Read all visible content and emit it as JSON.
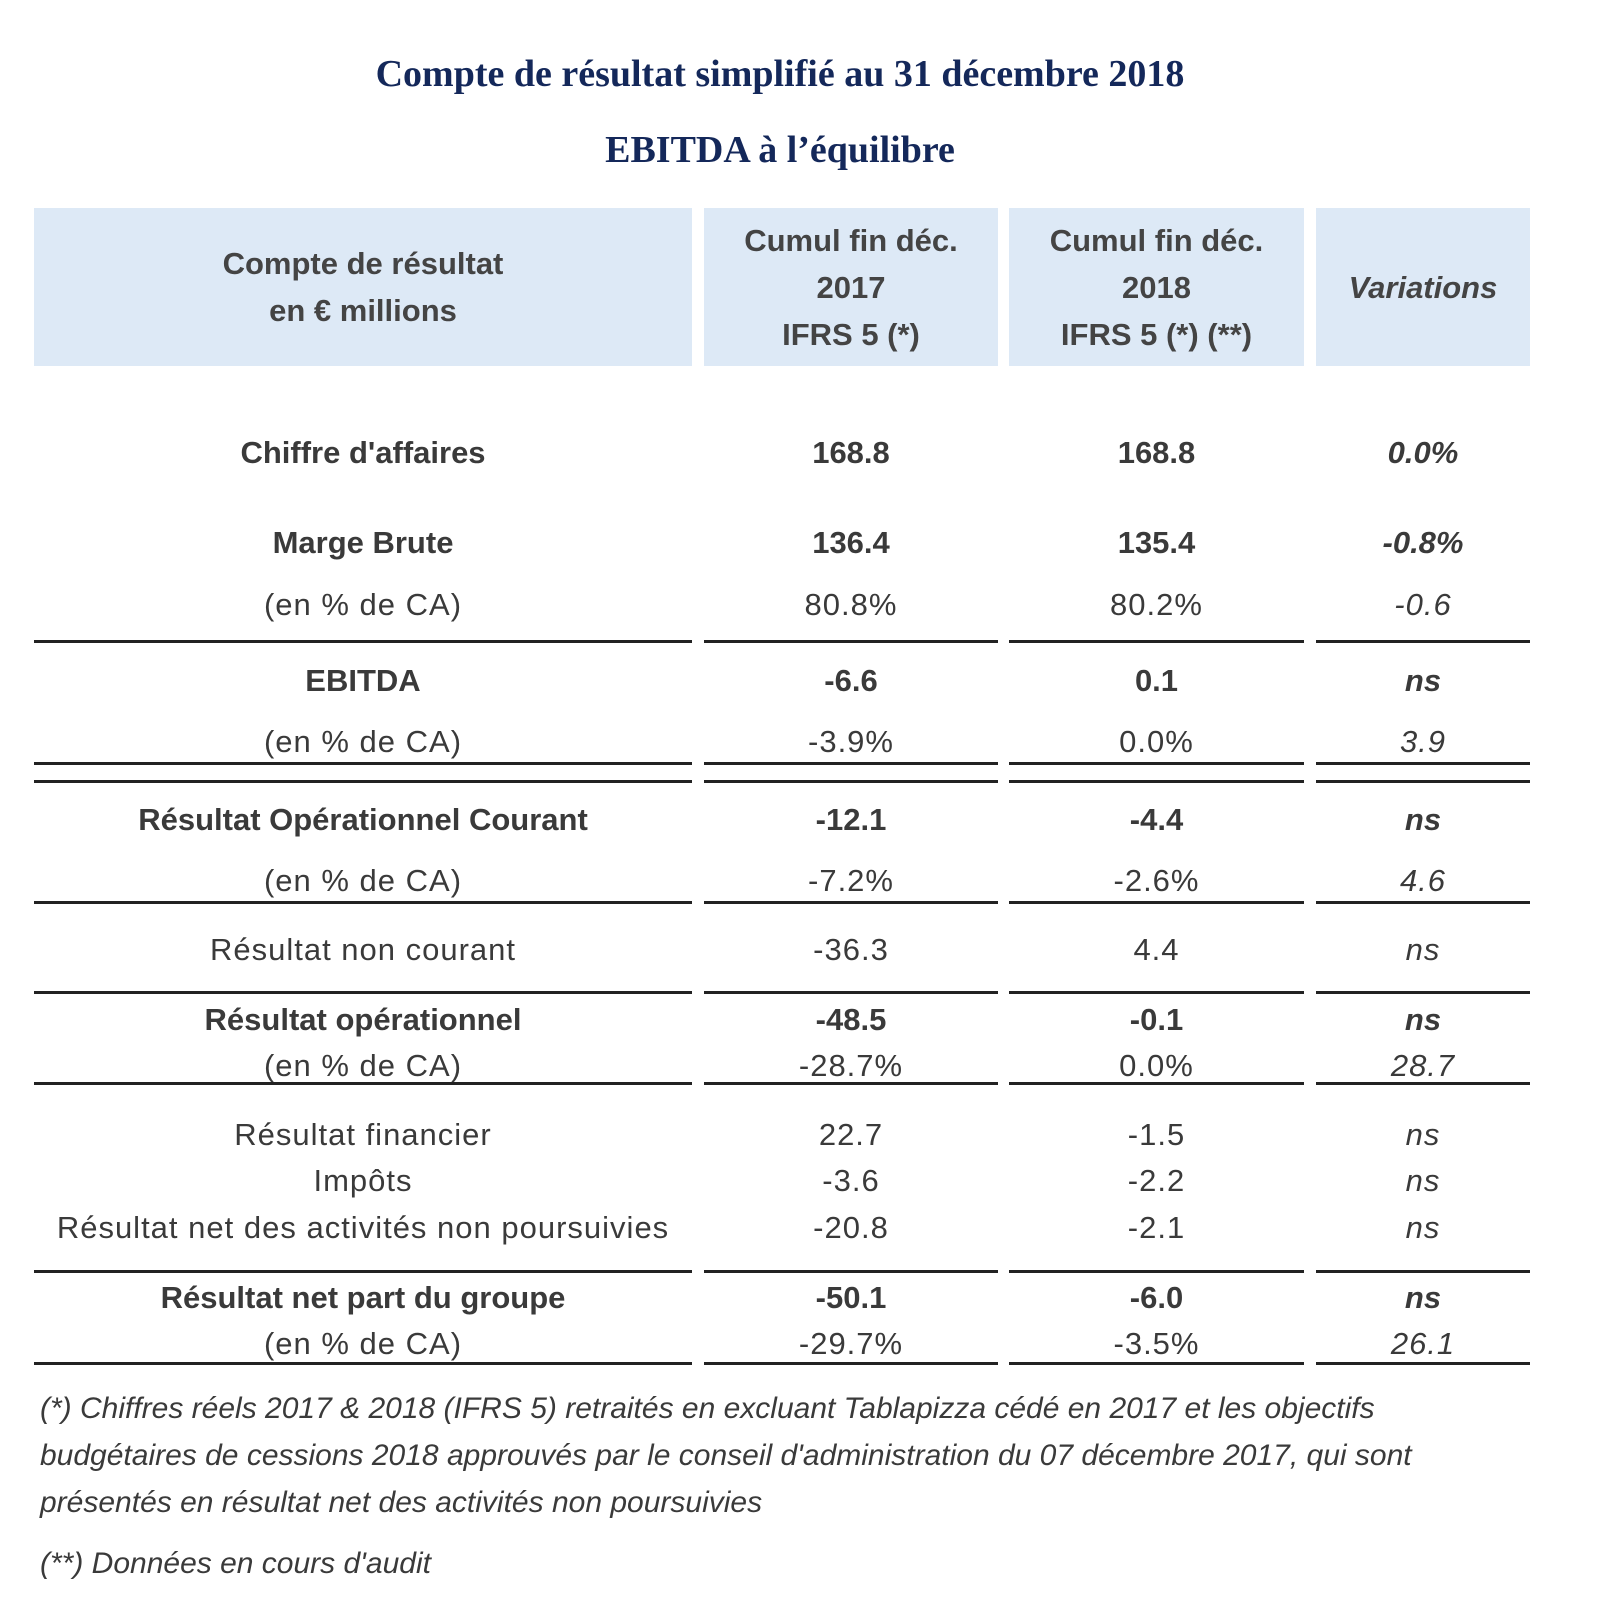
{
  "title": "Compte de résultat simplifié au 31 décembre 2018",
  "subtitle": "EBITDA à l’équilibre",
  "header": {
    "col0": [
      "Compte de résultat",
      "en € millions"
    ],
    "col1": [
      "Cumul fin déc.",
      "2017",
      "IFRS 5 (*)"
    ],
    "col2": [
      "Cumul fin déc.",
      "2018",
      "IFRS 5 (*) (**)"
    ],
    "col3": "Variations"
  },
  "rows": [
    {
      "label": "Chiffre d'affaires",
      "v2017": "168.8",
      "v2018": "168.8",
      "var": "0.0%"
    },
    {
      "label": "Marge Brute",
      "v2017": "136.4",
      "v2018": "135.4",
      "var": "-0.8%"
    },
    {
      "label": "(en % de CA)",
      "v2017": "80.8%",
      "v2018": "80.2%",
      "var": "-0.6"
    },
    {
      "label": "EBITDA",
      "v2017": "-6.6",
      "v2018": "0.1",
      "var": "ns"
    },
    {
      "label": "(en % de CA)",
      "v2017": "-3.9%",
      "v2018": "0.0%",
      "var": "3.9"
    },
    {
      "label": "Résultat Opérationnel Courant",
      "v2017": "-12.1",
      "v2018": "-4.4",
      "var": "ns"
    },
    {
      "label": "(en % de CA)",
      "v2017": "-7.2%",
      "v2018": "-2.6%",
      "var": "4.6"
    },
    {
      "label": "Résultat non courant",
      "v2017": "-36.3",
      "v2018": "4.4",
      "var": "ns"
    },
    {
      "label": "Résultat opérationnel",
      "v2017": "-48.5",
      "v2018": "-0.1",
      "var": "ns"
    },
    {
      "label": "(en % de CA)",
      "v2017": "-28.7%",
      "v2018": "0.0%",
      "var": "28.7"
    },
    {
      "label": "Résultat financier",
      "v2017": "22.7",
      "v2018": "-1.5",
      "var": "ns"
    },
    {
      "label": "Impôts",
      "v2017": "-3.6",
      "v2018": "-2.2",
      "var": "ns"
    },
    {
      "label": "Résultat net des activités non poursuivies",
      "v2017": "-20.8",
      "v2018": "-2.1",
      "var": "ns"
    },
    {
      "label": "Résultat net part du groupe",
      "v2017": "-50.1",
      "v2018": "-6.0",
      "var": "ns"
    },
    {
      "label": "(en % de CA)",
      "v2017": "-29.7%",
      "v2018": "-3.5%",
      "var": "26.1"
    }
  ],
  "notes": {
    "note1": "(*) Chiffres réels 2017 & 2018 (IFRS 5) retraités en excluant Tablapizza cédé en 2017 et les objectifs budgétaires de cessions 2018 approuvés par le conseil d'administration du 07 décembre 2017, qui sont présentés en résultat net des activités non poursuivies",
    "note2": "(**) Données en cours d'audit"
  }
}
